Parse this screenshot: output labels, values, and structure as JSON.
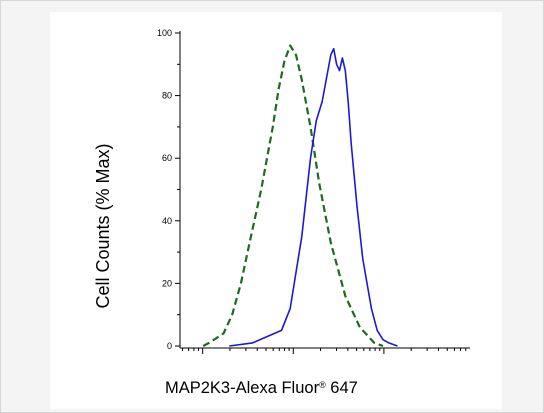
{
  "chart_data": {
    "type": "line",
    "title": "",
    "xlabel": {
      "prefix": "MAP2K3-Alexa Fluor",
      "mark": "®",
      "suffix": " 647"
    },
    "ylabel": "Cell Counts (% Max)",
    "ylim": [
      0,
      100
    ],
    "y_ticks": [
      0,
      20,
      40,
      60,
      80,
      100
    ],
    "x_scale": "log",
    "x_tick_labels": "none",
    "series": [
      {
        "style": "dashed",
        "color": "#1d6b1d",
        "x": [
          0.08,
          0.1,
          0.15,
          0.18,
          0.21,
          0.24,
          0.28,
          0.32,
          0.34,
          0.36,
          0.38,
          0.4,
          0.42,
          0.45,
          0.48,
          0.52,
          0.57,
          0.62,
          0.67,
          0.7
        ],
        "y": [
          0,
          1,
          4,
          10,
          20,
          33,
          50,
          70,
          82,
          91,
          96,
          93,
          85,
          70,
          52,
          33,
          16,
          6,
          1,
          0
        ]
      },
      {
        "style": "solid",
        "color": "#1a1ad6",
        "x": [
          0.17,
          0.25,
          0.35,
          0.38,
          0.42,
          0.45,
          0.47,
          0.49,
          0.51,
          0.52,
          0.53,
          0.54,
          0.55,
          0.56,
          0.57,
          0.58,
          0.59,
          0.6,
          0.61,
          0.63,
          0.66,
          0.68,
          0.7,
          0.72,
          0.75
        ],
        "y": [
          0,
          1,
          5,
          12,
          35,
          60,
          72,
          78,
          88,
          93,
          95,
          90,
          88,
          92,
          88,
          78,
          65,
          55,
          45,
          28,
          12,
          5,
          2,
          1,
          0
        ]
      }
    ]
  }
}
